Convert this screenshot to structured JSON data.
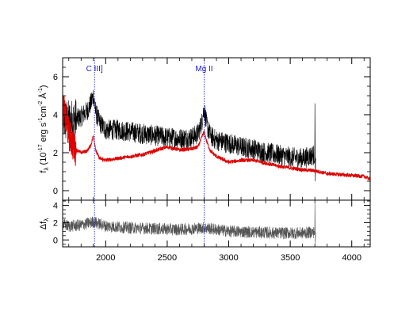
{
  "chart_data": [
    {
      "type": "line",
      "panel": "spectrum",
      "ylabel": {
        "base": "f",
        "sub": "λ",
        "pre": " (10",
        "sup1": "-17",
        "mid": " erg s",
        "sup2": "-1",
        "mid2": "cm",
        "sup3": "-2",
        "mid3": " Å",
        "sup4": "-1",
        "post": ")"
      },
      "xlim": [
        1650,
        4150
      ],
      "ylim": [
        -0.5,
        7
      ],
      "x_ticks": [
        2000,
        2500,
        3000,
        3500,
        4000
      ],
      "y_ticks": [
        0,
        2,
        4,
        6
      ],
      "emission_lines": [
        {
          "label": "C III]",
          "x": 1909
        },
        {
          "label": "Mg II",
          "x": 2800
        }
      ],
      "series": [
        {
          "color": "#000000",
          "x": [
            1650,
            1700,
            1750,
            1800,
            1850,
            1880,
            1900,
            1920,
            1950,
            2000,
            2100,
            2200,
            2300,
            2400,
            2500,
            2600,
            2700,
            2750,
            2780,
            2800,
            2820,
            2850,
            2900,
            3000,
            3100,
            3200,
            3300,
            3400,
            3500,
            3600,
            3700
          ],
          "y": [
            3.8,
            3.6,
            3.7,
            3.9,
            4.2,
            4.6,
            5.0,
            4.1,
            3.6,
            3.2,
            3.2,
            3.1,
            3.0,
            2.9,
            2.8,
            2.75,
            2.8,
            3.0,
            3.6,
            4.3,
            3.5,
            2.9,
            2.65,
            2.5,
            2.3,
            2.2,
            2.0,
            1.9,
            1.75,
            1.7,
            1.9
          ]
        },
        {
          "color": "#dd0000",
          "x": [
            1650,
            1700,
            1750,
            1800,
            1850,
            1880,
            1900,
            1920,
            1950,
            2000,
            2100,
            2200,
            2300,
            2400,
            2500,
            2600,
            2700,
            2750,
            2780,
            2800,
            2820,
            2850,
            2900,
            3000,
            3100,
            3200,
            3300,
            3400,
            3500,
            3600,
            3700,
            3800,
            3900,
            4000,
            4100,
            4150
          ],
          "y": [
            4.5,
            3.0,
            2.2,
            2.0,
            2.1,
            2.4,
            2.9,
            2.1,
            1.7,
            1.6,
            1.7,
            1.8,
            1.9,
            2.1,
            2.3,
            2.15,
            2.2,
            2.3,
            2.8,
            3.1,
            2.6,
            2.1,
            1.8,
            1.5,
            1.6,
            1.6,
            1.45,
            1.3,
            1.2,
            1.1,
            1.05,
            0.9,
            0.85,
            0.8,
            0.75,
            0.6
          ]
        }
      ]
    },
    {
      "type": "line",
      "panel": "residual",
      "ylabel": {
        "base": "Δf",
        "sub": "λ"
      },
      "xlim": [
        1650,
        4150
      ],
      "ylim": [
        -0.8,
        4.6
      ],
      "x_ticks": [
        2000,
        2500,
        3000,
        3500,
        4000
      ],
      "y_ticks": [
        0,
        2,
        4
      ],
      "series": [
        {
          "color": "#555555",
          "x": [
            1650,
            1700,
            1800,
            1900,
            2000,
            2200,
            2400,
            2600,
            2800,
            3000,
            3200,
            3400,
            3600,
            3700
          ],
          "y": [
            1.8,
            1.6,
            1.7,
            2.1,
            1.6,
            1.4,
            1.3,
            1.2,
            1.4,
            1.0,
            0.9,
            0.8,
            0.8,
            0.9
          ]
        }
      ]
    }
  ]
}
